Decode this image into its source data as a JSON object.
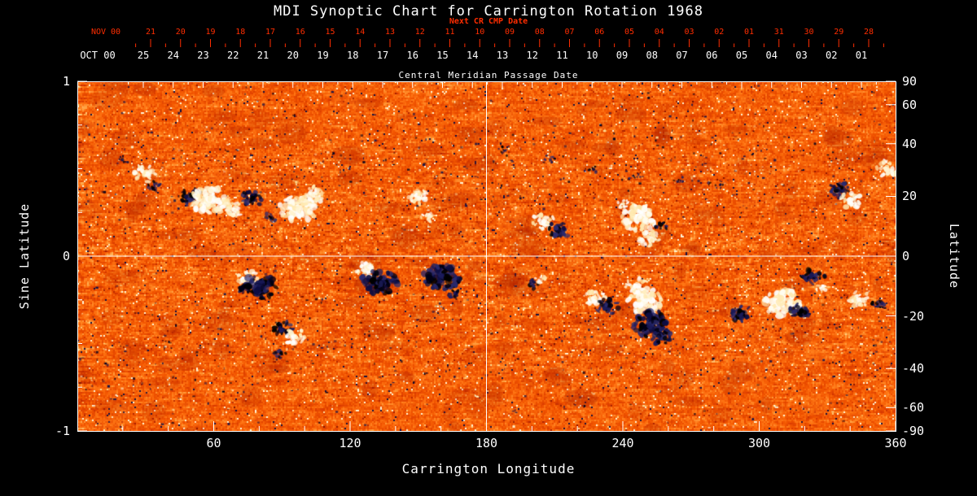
{
  "title": "MDI Synoptic Chart for Carrington Rotation 1968",
  "colors": {
    "background": "#000000",
    "text": "#ffffff",
    "red_axis": "#ff2d00",
    "quiet_sun_orange": "#f25500",
    "positive_polarity": "#fffdf0",
    "negative_polarity": "#10104a"
  },
  "top_axis": {
    "label": "Next CR CMP Date",
    "prefix": "NOV 00",
    "dates": [
      "21",
      "20",
      "19",
      "18",
      "17",
      "16",
      "15",
      "14",
      "13",
      "12",
      "11",
      "10",
      "09",
      "08",
      "07",
      "06",
      "05",
      "04",
      "03",
      "02",
      "01",
      "31",
      "30",
      "29",
      "28"
    ]
  },
  "cmp_axis": {
    "label": "Central Meridian Passage Date",
    "prefix": "OCT 00",
    "dates": [
      "25",
      "24",
      "23",
      "22",
      "21",
      "20",
      "19",
      "18",
      "17",
      "16",
      "15",
      "14",
      "13",
      "12",
      "11",
      "10",
      "09",
      "08",
      "07",
      "06",
      "05",
      "04",
      "03",
      "02",
      "01"
    ]
  },
  "left_axis": {
    "label": "Sine Latitude",
    "ticks": [
      "1",
      "0",
      "-1"
    ]
  },
  "right_axis": {
    "label": "Latitude",
    "ticks": [
      "90",
      "60",
      "40",
      "20",
      "0",
      "-20",
      "-40",
      "-60",
      "-90"
    ]
  },
  "bottom_axis": {
    "label": "Carrington Longitude",
    "ticks": [
      "60",
      "120",
      "180",
      "240",
      "300",
      "360"
    ]
  },
  "chart_data": {
    "type": "heatmap",
    "title": "MDI Synoptic Chart for Carrington Rotation 1968",
    "xlabel": "Carrington Longitude",
    "ylabel_left": "Sine Latitude",
    "ylabel_right": "Latitude",
    "x_range": [
      0,
      360
    ],
    "y_range_sine": [
      -1,
      1
    ],
    "x_ticks": [
      60,
      120,
      180,
      240,
      300,
      360
    ],
    "y_ticks_sine": [
      1,
      0,
      -1
    ],
    "y_ticks_latitude": [
      90,
      60,
      40,
      20,
      0,
      -20,
      -40,
      -60,
      -90
    ],
    "reference_lines": {
      "vertical_at_longitude": 180,
      "horizontal_at_sine_latitude": 0
    },
    "top_axis_next_cr_cmp_dates": {
      "month_start": "NOV 00",
      "days": [
        "21",
        "20",
        "19",
        "18",
        "17",
        "16",
        "15",
        "14",
        "13",
        "12",
        "11",
        "10",
        "09",
        "08",
        "07",
        "06",
        "05",
        "04",
        "03",
        "02",
        "01",
        "31",
        "30",
        "29",
        "28"
      ]
    },
    "cmp_dates": {
      "month_start": "OCT 00",
      "days": [
        "25",
        "24",
        "23",
        "22",
        "21",
        "20",
        "19",
        "18",
        "17",
        "16",
        "15",
        "14",
        "13",
        "12",
        "11",
        "10",
        "09",
        "08",
        "07",
        "06",
        "05",
        "04",
        "03",
        "02",
        "01"
      ]
    },
    "palette": "quiet-sun orange-red mottle; positive magnetic polarity rendered white, negative polarity dark navy/black",
    "active_regions": [
      {
        "lon": 20,
        "sine_lat": 0.55,
        "polarity": "negative",
        "size": "tiny"
      },
      {
        "lon": 30,
        "sine_lat": 0.47,
        "polarity": "positive",
        "size": "medium"
      },
      {
        "lon": 34,
        "sine_lat": 0.4,
        "polarity": "negative",
        "size": "small"
      },
      {
        "lon": 50,
        "sine_lat": 0.34,
        "polarity": "negative",
        "size": "medium"
      },
      {
        "lon": 58,
        "sine_lat": 0.32,
        "polarity": "positive",
        "size": "large"
      },
      {
        "lon": 68,
        "sine_lat": 0.27,
        "polarity": "positive",
        "size": "medium"
      },
      {
        "lon": 77,
        "sine_lat": 0.33,
        "polarity": "negative",
        "size": "medium"
      },
      {
        "lon": 85,
        "sine_lat": 0.22,
        "polarity": "negative",
        "size": "small"
      },
      {
        "lon": 97,
        "sine_lat": 0.27,
        "polarity": "positive",
        "size": "large"
      },
      {
        "lon": 104,
        "sine_lat": 0.35,
        "polarity": "positive",
        "size": "medium"
      },
      {
        "lon": 150,
        "sine_lat": 0.34,
        "polarity": "positive",
        "size": "medium"
      },
      {
        "lon": 154,
        "sine_lat": 0.22,
        "polarity": "positive",
        "size": "small"
      },
      {
        "lon": 188,
        "sine_lat": 0.6,
        "polarity": "negative",
        "size": "tiny"
      },
      {
        "lon": 207,
        "sine_lat": 0.55,
        "polarity": "negative",
        "size": "tiny"
      },
      {
        "lon": 226,
        "sine_lat": 0.5,
        "polarity": "negative",
        "size": "tiny"
      },
      {
        "lon": 245,
        "sine_lat": 0.46,
        "polarity": "negative",
        "size": "tiny"
      },
      {
        "lon": 264,
        "sine_lat": 0.43,
        "polarity": "negative",
        "size": "tiny"
      },
      {
        "lon": 281,
        "sine_lat": 0.41,
        "polarity": "negative",
        "size": "tiny"
      },
      {
        "lon": 205,
        "sine_lat": 0.2,
        "polarity": "positive",
        "size": "medium"
      },
      {
        "lon": 212,
        "sine_lat": 0.15,
        "polarity": "negative",
        "size": "medium"
      },
      {
        "lon": 240,
        "sine_lat": 0.3,
        "polarity": "positive",
        "size": "small"
      },
      {
        "lon": 247,
        "sine_lat": 0.22,
        "polarity": "positive",
        "size": "large"
      },
      {
        "lon": 252,
        "sine_lat": 0.1,
        "polarity": "positive",
        "size": "medium"
      },
      {
        "lon": 257,
        "sine_lat": 0.17,
        "polarity": "negative",
        "size": "small"
      },
      {
        "lon": 335,
        "sine_lat": 0.38,
        "polarity": "negative",
        "size": "medium"
      },
      {
        "lon": 340,
        "sine_lat": 0.32,
        "polarity": "positive",
        "size": "medium"
      },
      {
        "lon": 356,
        "sine_lat": 0.5,
        "polarity": "positive",
        "size": "medium"
      },
      {
        "lon": 75,
        "sine_lat": -0.13,
        "polarity": "positive",
        "size": "medium"
      },
      {
        "lon": 80,
        "sine_lat": -0.18,
        "polarity": "negative",
        "size": "large"
      },
      {
        "lon": 90,
        "sine_lat": -0.42,
        "polarity": "negative",
        "size": "medium"
      },
      {
        "lon": 96,
        "sine_lat": -0.46,
        "polarity": "positive",
        "size": "medium"
      },
      {
        "lon": 89,
        "sine_lat": -0.56,
        "polarity": "negative",
        "size": "small"
      },
      {
        "lon": 128,
        "sine_lat": -0.08,
        "polarity": "positive",
        "size": "medium"
      },
      {
        "lon": 133,
        "sine_lat": -0.15,
        "polarity": "negative",
        "size": "large"
      },
      {
        "lon": 160,
        "sine_lat": -0.12,
        "polarity": "negative",
        "size": "large"
      },
      {
        "lon": 166,
        "sine_lat": -0.22,
        "polarity": "negative",
        "size": "small"
      },
      {
        "lon": 200,
        "sine_lat": -0.16,
        "polarity": "negative",
        "size": "small"
      },
      {
        "lon": 204,
        "sine_lat": -0.13,
        "polarity": "positive",
        "size": "small"
      },
      {
        "lon": 228,
        "sine_lat": -0.24,
        "polarity": "positive",
        "size": "medium"
      },
      {
        "lon": 233,
        "sine_lat": -0.29,
        "polarity": "negative",
        "size": "medium"
      },
      {
        "lon": 246,
        "sine_lat": -0.17,
        "polarity": "positive",
        "size": "medium"
      },
      {
        "lon": 249,
        "sine_lat": -0.26,
        "polarity": "positive",
        "size": "large"
      },
      {
        "lon": 252,
        "sine_lat": -0.39,
        "polarity": "negative",
        "size": "large"
      },
      {
        "lon": 257,
        "sine_lat": -0.46,
        "polarity": "negative",
        "size": "medium"
      },
      {
        "lon": 292,
        "sine_lat": -0.33,
        "polarity": "negative",
        "size": "medium"
      },
      {
        "lon": 310,
        "sine_lat": -0.27,
        "polarity": "positive",
        "size": "large"
      },
      {
        "lon": 318,
        "sine_lat": -0.31,
        "polarity": "negative",
        "size": "medium"
      },
      {
        "lon": 324,
        "sine_lat": -0.12,
        "polarity": "negative",
        "size": "medium"
      },
      {
        "lon": 327,
        "sine_lat": -0.18,
        "polarity": "positive",
        "size": "small"
      },
      {
        "lon": 344,
        "sine_lat": -0.25,
        "polarity": "positive",
        "size": "medium"
      },
      {
        "lon": 352,
        "sine_lat": -0.28,
        "polarity": "negative",
        "size": "small"
      }
    ]
  }
}
